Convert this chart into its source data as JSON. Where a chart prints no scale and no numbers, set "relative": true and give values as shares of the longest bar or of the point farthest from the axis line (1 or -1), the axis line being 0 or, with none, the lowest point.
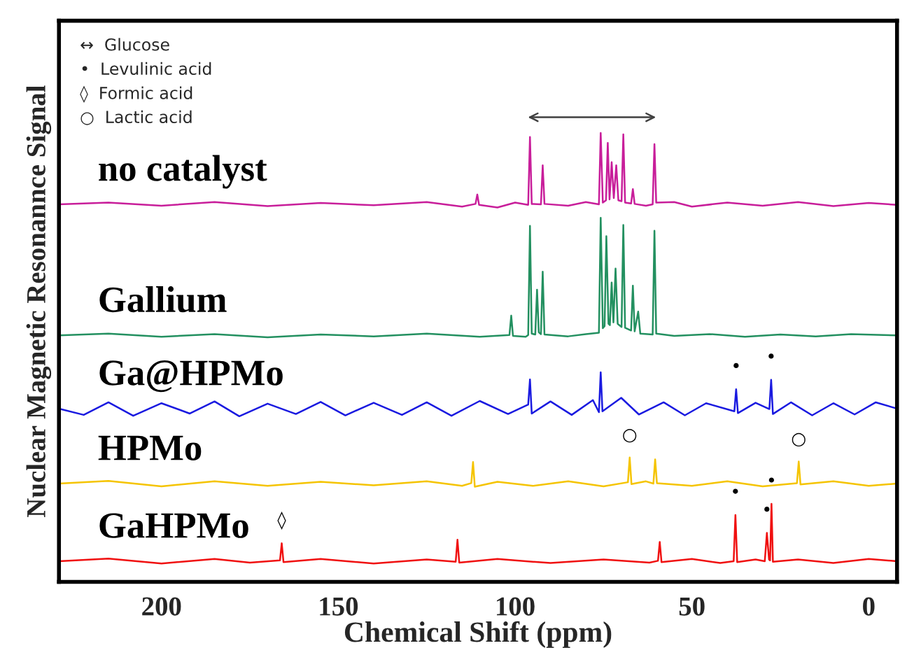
{
  "chart_data": {
    "type": "line",
    "relative": true,
    "xlabel": "Chemical Shift (ppm)",
    "ylabel": "Nuclear Magnetic Resonannce Signal",
    "xlim": [
      229,
      -8
    ],
    "xticks": [
      200,
      150,
      100,
      50,
      0
    ],
    "grid": false,
    "legend": false,
    "marker": "none",
    "line_style": "solid",
    "series": [
      {
        "name": "no catalyst",
        "color": "#c81e9a",
        "x": [
          229,
          215,
          200,
          185,
          170,
          155,
          140,
          125,
          115,
          111.2,
          110.7,
          110.2,
          105,
          100,
          96.3,
          95.8,
          95.3,
          92.7,
          92.2,
          91.7,
          85,
          80,
          76.3,
          75.8,
          75.2,
          74.3,
          73.8,
          73.3,
          72.7,
          72.1,
          71.4,
          70.8,
          69.9,
          69.4,
          68.9,
          67.2,
          66.7,
          66.2,
          63,
          61.1,
          60.6,
          60.1,
          55,
          50,
          40,
          30,
          20,
          10,
          0,
          -8
        ],
        "values": [
          0.841,
          0.845,
          0.838,
          0.846,
          0.837,
          0.844,
          0.839,
          0.846,
          0.836,
          0.842,
          0.863,
          0.84,
          0.834,
          0.845,
          0.84,
          0.991,
          0.842,
          0.841,
          0.928,
          0.842,
          0.838,
          0.846,
          0.841,
          1.0,
          0.845,
          0.85,
          0.978,
          0.852,
          0.935,
          0.855,
          0.928,
          0.85,
          0.848,
          0.997,
          0.845,
          0.843,
          0.875,
          0.842,
          0.838,
          0.841,
          0.975,
          0.845,
          0.846,
          0.836,
          0.845,
          0.838,
          0.846,
          0.837,
          0.844,
          0.84
        ]
      },
      {
        "name": "Gallium",
        "color": "#239060",
        "x": [
          229,
          215,
          200,
          185,
          170,
          155,
          140,
          125,
          110,
          101.6,
          101.1,
          100.6,
          97,
          96.3,
          95.8,
          95.3,
          94.3,
          93.8,
          93.3,
          92.7,
          92.2,
          91.7,
          85,
          80,
          76.3,
          75.8,
          75.2,
          74.7,
          74.2,
          73.6,
          73.2,
          72.7,
          72.2,
          71.6,
          71.0,
          69.9,
          69.4,
          68.9,
          67.2,
          66.7,
          66.2,
          65.2,
          64.6,
          61.1,
          60.6,
          60.1,
          55,
          45,
          35,
          25,
          15,
          5,
          -8
        ],
        "values": [
          0.549,
          0.553,
          0.546,
          0.552,
          0.545,
          0.551,
          0.547,
          0.553,
          0.546,
          0.55,
          0.593,
          0.548,
          0.546,
          0.55,
          0.793,
          0.553,
          0.551,
          0.651,
          0.556,
          0.552,
          0.691,
          0.551,
          0.547,
          0.552,
          0.555,
          0.811,
          0.565,
          0.57,
          0.77,
          0.575,
          0.572,
          0.667,
          0.578,
          0.698,
          0.575,
          0.568,
          0.795,
          0.566,
          0.56,
          0.66,
          0.558,
          0.602,
          0.553,
          0.551,
          0.782,
          0.553,
          0.548,
          0.552,
          0.546,
          0.551,
          0.547,
          0.552,
          0.549
        ]
      },
      {
        "name": "Ga@HPMo",
        "color": "#1a1ae0",
        "x": [
          229,
          222,
          215,
          208,
          200,
          192,
          185,
          178,
          170,
          162,
          155,
          148,
          140,
          132,
          125,
          118,
          110,
          102,
          96.3,
          95.8,
          95.3,
          90,
          84,
          78,
          76.3,
          75.8,
          75.3,
          70,
          65,
          58,
          52,
          46,
          38,
          37.5,
          37,
          32,
          28.1,
          27.6,
          27.1,
          22,
          16,
          10,
          4,
          -2,
          -8
        ],
        "values": [
          0.386,
          0.372,
          0.4,
          0.37,
          0.398,
          0.375,
          0.402,
          0.369,
          0.397,
          0.374,
          0.401,
          0.371,
          0.399,
          0.372,
          0.4,
          0.37,
          0.403,
          0.374,
          0.395,
          0.451,
          0.375,
          0.402,
          0.372,
          0.405,
          0.378,
          0.467,
          0.38,
          0.41,
          0.373,
          0.4,
          0.371,
          0.398,
          0.38,
          0.429,
          0.376,
          0.399,
          0.385,
          0.45,
          0.374,
          0.4,
          0.371,
          0.398,
          0.373,
          0.4,
          0.386
        ]
      },
      {
        "name": "HPMo",
        "color": "#f5c400",
        "x": [
          229,
          215,
          200,
          185,
          170,
          155,
          140,
          125,
          115,
          112.4,
          111.9,
          111.4,
          105,
          95,
          85,
          75,
          68.1,
          67.6,
          67.1,
          63,
          60.9,
          60.4,
          59.9,
          50,
          40,
          30,
          20.3,
          19.8,
          19.3,
          10,
          0,
          -8
        ],
        "values": [
          0.219,
          0.225,
          0.213,
          0.224,
          0.214,
          0.223,
          0.215,
          0.224,
          0.214,
          0.22,
          0.267,
          0.212,
          0.223,
          0.214,
          0.224,
          0.213,
          0.222,
          0.277,
          0.218,
          0.224,
          0.219,
          0.273,
          0.22,
          0.214,
          0.224,
          0.213,
          0.22,
          0.268,
          0.217,
          0.224,
          0.214,
          0.219
        ]
      },
      {
        "name": "GaHPMo",
        "color": "#f01010",
        "x": [
          229,
          215,
          200,
          185,
          175,
          166.5,
          166,
          165.5,
          155,
          140,
          125,
          116.8,
          116.3,
          115.8,
          105,
          90,
          75,
          62,
          59.6,
          59.1,
          58.6,
          50,
          42,
          38.2,
          37.7,
          37.2,
          32,
          29.4,
          28.8,
          28.2,
          27.9,
          27.5,
          27.1,
          20,
          10,
          0,
          -8
        ],
        "values": [
          0.046,
          0.052,
          0.041,
          0.051,
          0.043,
          0.048,
          0.086,
          0.044,
          0.051,
          0.041,
          0.05,
          0.045,
          0.094,
          0.043,
          0.051,
          0.042,
          0.05,
          0.043,
          0.047,
          0.089,
          0.044,
          0.051,
          0.042,
          0.046,
          0.149,
          0.044,
          0.05,
          0.046,
          0.109,
          0.05,
          0.048,
          0.174,
          0.045,
          0.05,
          0.042,
          0.051,
          0.046
        ]
      }
    ],
    "annotations": [
      "↔  Glucose",
      "•  Levulinic acid",
      "◊  Formic acid",
      "○  Lactic acid",
      {
        "text": "•",
        "x": 37.5,
        "y": 0.429
      },
      {
        "text": "•",
        "x": 27.6,
        "y": 0.45
      },
      {
        "text": "○",
        "x": 67.6,
        "y": 0.277
      },
      {
        "text": "○",
        "x": 19.8,
        "y": 0.268
      },
      {
        "text": "◊",
        "x": 166,
        "y": 0.086
      },
      {
        "text": "•",
        "x": 37.7,
        "y": 0.149
      },
      {
        "text": "•",
        "x": 28.8,
        "y": 0.109
      },
      {
        "text": "•",
        "x": 27.5,
        "y": 0.174
      }
    ]
  }
}
